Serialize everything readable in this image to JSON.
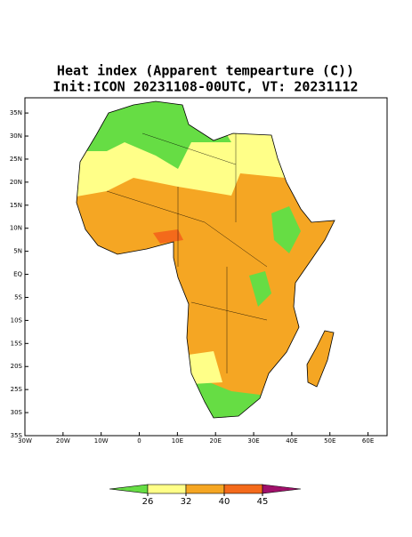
{
  "map": {
    "title": [
      "Heat index (Apparent tempearture (C))",
      "Init:ICON 20231108-00UTC, VT: 20231112"
    ],
    "xlim": [
      -30,
      65
    ],
    "ylim": [
      -35,
      38.3
    ],
    "xticks": [
      {
        "value": -30,
        "label": "30W"
      },
      {
        "value": -20,
        "label": "20W"
      },
      {
        "value": -10,
        "label": "10W"
      },
      0,
      {
        "value": 10,
        "label": "10E"
      },
      {
        "value": 20,
        "label": "20E"
      },
      {
        "value": 30,
        "label": "30E"
      },
      {
        "value": 40,
        "label": "40E"
      },
      {
        "value": 50,
        "label": "50E"
      },
      {
        "value": 60,
        "label": "60E"
      }
    ],
    "yticks": [
      {
        "value": 35,
        "label": "35N"
      },
      {
        "value": 30,
        "label": "30N"
      },
      {
        "value": 25,
        "label": "25N"
      },
      {
        "value": 20,
        "label": "20N"
      },
      {
        "value": 15,
        "label": "15N"
      },
      {
        "value": 10,
        "label": "10N"
      },
      {
        "value": 5,
        "label": "5N"
      },
      {
        "value": 0,
        "label": "EQ"
      },
      {
        "value": -5,
        "label": "5S"
      },
      {
        "value": -10,
        "label": "10S"
      },
      {
        "value": -15,
        "label": "15S"
      },
      {
        "value": -20,
        "label": "20S"
      },
      {
        "value": -25,
        "label": "25S"
      },
      {
        "value": -30,
        "label": "30S"
      },
      {
        "value": -35,
        "label": "35S"
      }
    ],
    "colorbar": {
      "ticks": [
        26,
        32,
        40,
        45
      ],
      "colors": [
        "#66dd44",
        "#ffff88",
        "#f5a623",
        "#f46a1b",
        "#a0106a"
      ]
    }
  }
}
